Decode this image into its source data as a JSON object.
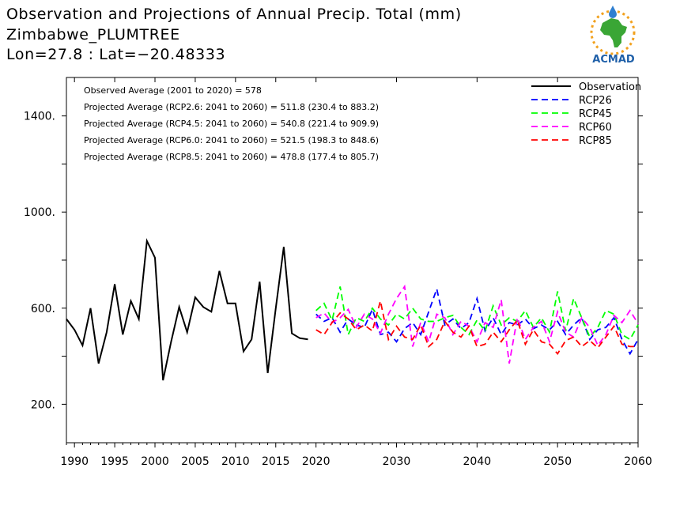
{
  "header": {
    "title": "Observation and Projections of Annual Precip. Total (mm)",
    "station": "Zimbabwe_PLUMTREE",
    "coords": "Lon=27.8 : Lat=−20.48333"
  },
  "logo": {
    "text": "ACMAD",
    "icon": "acmad-africa-logo"
  },
  "annotations": [
    "Observed Average (2001 to 2020) = 578",
    "Projected Average (RCP2.6: 2041 to 2060) = 511.8 (230.4 to 883.2)",
    "Projected Average (RCP4.5: 2041 to 2060) = 540.8 (221.4 to 909.9)",
    "Projected Average (RCP6.0: 2041 to 2060) = 521.5 (198.3 to 848.6)",
    "Projected Average (RCP8.5: 2041 to 2060) = 478.8 (177.4 to 805.7)"
  ],
  "chart_data": {
    "type": "line",
    "xlim": [
      1989,
      2060
    ],
    "ylim": [
      40,
      1560
    ],
    "x_ticks": [
      "1990",
      "1995",
      "2000",
      "2005",
      "2010",
      "2015",
      "2020",
      "2030",
      "2040",
      "2050",
      "2060"
    ],
    "y_ticks": [
      "200.",
      "600.",
      "1000.",
      "1400."
    ],
    "legend_position": "top-right",
    "series": [
      {
        "name": "Observation",
        "color": "#000000",
        "dash": "solid",
        "x": [
          1989,
          1990,
          1991,
          1992,
          1993,
          1994,
          1995,
          1996,
          1997,
          1998,
          1999,
          2000,
          2001,
          2002,
          2003,
          2004,
          2005,
          2006,
          2007,
          2008,
          2009,
          2010,
          2011,
          2012,
          2013,
          2014,
          2015,
          2016,
          2017,
          2018,
          2019
        ],
        "values": [
          555,
          510,
          445,
          600,
          370,
          500,
          700,
          490,
          630,
          555,
          880,
          810,
          300,
          460,
          605,
          500,
          645,
          605,
          585,
          755,
          620,
          620,
          420,
          470,
          710,
          330,
          600,
          855,
          495,
          475,
          470
        ]
      },
      {
        "name": "RCP26",
        "color": "#0000ff",
        "dash": "dashed",
        "x": [
          2020,
          2021,
          2022,
          2023,
          2024,
          2025,
          2026,
          2027,
          2028,
          2029,
          2030,
          2031,
          2032,
          2033,
          2034,
          2035,
          2036,
          2037,
          2038,
          2039,
          2040,
          2041,
          2042,
          2043,
          2044,
          2045,
          2046,
          2047,
          2048,
          2049,
          2050,
          2051,
          2052,
          2053,
          2054,
          2055,
          2056,
          2057,
          2058,
          2059,
          2060
        ],
        "values": [
          575,
          545,
          560,
          500,
          555,
          530,
          520,
          595,
          490,
          500,
          460,
          515,
          540,
          490,
          585,
          680,
          530,
          555,
          515,
          540,
          640,
          505,
          560,
          490,
          540,
          530,
          555,
          515,
          530,
          510,
          545,
          490,
          530,
          560,
          470,
          510,
          520,
          560,
          470,
          410,
          470
        ]
      },
      {
        "name": "RCP45",
        "color": "#00ff00",
        "dash": "dashed",
        "x": [
          2020,
          2021,
          2022,
          2023,
          2024,
          2025,
          2026,
          2027,
          2028,
          2029,
          2030,
          2031,
          2032,
          2033,
          2034,
          2035,
          2036,
          2037,
          2038,
          2039,
          2040,
          2041,
          2042,
          2043,
          2044,
          2045,
          2046,
          2047,
          2048,
          2049,
          2050,
          2051,
          2052,
          2053,
          2054,
          2055,
          2056,
          2057,
          2058,
          2059,
          2060
        ],
        "values": [
          590,
          620,
          550,
          690,
          490,
          560,
          545,
          600,
          555,
          530,
          575,
          555,
          600,
          555,
          545,
          545,
          560,
          570,
          520,
          490,
          550,
          505,
          610,
          530,
          560,
          545,
          590,
          520,
          560,
          500,
          670,
          505,
          640,
          560,
          480,
          520,
          590,
          575,
          490,
          470,
          530
        ]
      },
      {
        "name": "RCP60",
        "color": "#ff00ff",
        "dash": "dashed",
        "x": [
          2020,
          2021,
          2022,
          2023,
          2024,
          2025,
          2026,
          2027,
          2028,
          2029,
          2030,
          2031,
          2032,
          2033,
          2034,
          2035,
          2036,
          2037,
          2038,
          2039,
          2040,
          2041,
          2042,
          2043,
          2044,
          2045,
          2046,
          2047,
          2048,
          2049,
          2050,
          2051,
          2052,
          2053,
          2054,
          2055,
          2056,
          2057,
          2058,
          2059,
          2060
        ],
        "values": [
          560,
          580,
          540,
          560,
          595,
          520,
          575,
          555,
          495,
          575,
          640,
          690,
          440,
          540,
          460,
          575,
          560,
          490,
          545,
          525,
          460,
          540,
          520,
          635,
          370,
          560,
          470,
          520,
          545,
          460,
          585,
          500,
          480,
          560,
          520,
          445,
          490,
          570,
          540,
          590,
          535
        ]
      },
      {
        "name": "RCP85",
        "color": "#ff0000",
        "dash": "dashed",
        "x": [
          2020,
          2021,
          2022,
          2023,
          2024,
          2025,
          2026,
          2027,
          2028,
          2029,
          2030,
          2031,
          2032,
          2033,
          2034,
          2035,
          2036,
          2037,
          2038,
          2039,
          2040,
          2041,
          2042,
          2043,
          2044,
          2045,
          2046,
          2047,
          2048,
          2049,
          2050,
          2051,
          2052,
          2053,
          2054,
          2055,
          2056,
          2057,
          2058,
          2059,
          2060
        ],
        "values": [
          510,
          490,
          540,
          580,
          555,
          510,
          530,
          505,
          630,
          470,
          525,
          480,
          470,
          530,
          440,
          470,
          545,
          500,
          480,
          525,
          440,
          450,
          500,
          460,
          510,
          550,
          450,
          510,
          460,
          450,
          410,
          465,
          480,
          440,
          465,
          435,
          480,
          525,
          450,
          440,
          440
        ]
      }
    ]
  }
}
